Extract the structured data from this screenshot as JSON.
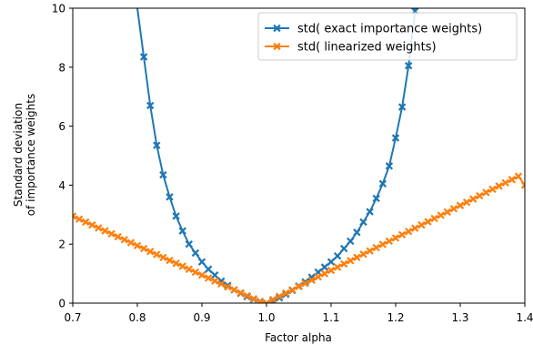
{
  "chart_data": {
    "type": "line",
    "title": "",
    "xlabel": "Factor alpha",
    "ylabel_lines": [
      "Standard deviation",
      "of importance weights"
    ],
    "xlim": [
      0.7,
      1.4
    ],
    "ylim": [
      0,
      10
    ],
    "xticks": [
      0.7,
      0.8,
      0.9,
      1.0,
      1.1,
      1.2,
      1.3,
      1.4
    ],
    "xtick_labels": [
      "0.7",
      "0.8",
      "0.9",
      "1.0",
      "1.1",
      "1.2",
      "1.3",
      "1.4"
    ],
    "yticks": [
      0,
      2,
      4,
      6,
      8,
      10
    ],
    "ytick_labels": [
      "0",
      "2",
      "4",
      "6",
      "8",
      "10"
    ],
    "grid": false,
    "legend_position": "top-right",
    "series": [
      {
        "name": "std( exact importance weights)",
        "color": "#1f77b4",
        "marker": "X",
        "x": [
          0.81,
          0.82,
          0.83,
          0.84,
          0.85,
          0.86,
          0.87,
          0.88,
          0.89,
          0.9,
          0.91,
          0.92,
          0.93,
          0.94,
          0.95,
          0.96,
          0.97,
          0.98,
          0.99,
          1.0,
          1.01,
          1.02,
          1.03,
          1.04,
          1.05,
          1.06,
          1.07,
          1.08,
          1.09,
          1.1,
          1.11,
          1.12,
          1.13,
          1.14,
          1.15,
          1.16,
          1.17,
          1.18,
          1.19,
          1.2,
          1.21,
          1.22,
          1.23
        ],
        "y": [
          8.35,
          6.7,
          5.35,
          4.35,
          3.6,
          2.95,
          2.45,
          2.0,
          1.7,
          1.4,
          1.15,
          0.95,
          0.75,
          0.6,
          0.45,
          0.33,
          0.22,
          0.13,
          0.06,
          0.0,
          0.08,
          0.18,
          0.3,
          0.43,
          0.58,
          0.72,
          0.88,
          1.05,
          1.22,
          1.4,
          1.6,
          1.85,
          2.1,
          2.4,
          2.75,
          3.1,
          3.55,
          4.05,
          4.65,
          5.6,
          6.65,
          8.05,
          9.9
        ]
      },
      {
        "name": "std( linearized weights)",
        "color": "#ff7f0e",
        "marker": "X",
        "x": [
          0.7,
          0.71,
          0.72,
          0.73,
          0.74,
          0.75,
          0.76,
          0.77,
          0.78,
          0.79,
          0.8,
          0.81,
          0.82,
          0.83,
          0.84,
          0.85,
          0.86,
          0.87,
          0.88,
          0.89,
          0.9,
          0.91,
          0.92,
          0.93,
          0.94,
          0.95,
          0.96,
          0.97,
          0.98,
          0.99,
          1.0,
          1.01,
          1.02,
          1.03,
          1.04,
          1.05,
          1.06,
          1.07,
          1.08,
          1.09,
          1.1,
          1.11,
          1.12,
          1.13,
          1.14,
          1.15,
          1.16,
          1.17,
          1.18,
          1.19,
          1.2,
          1.21,
          1.22,
          1.23,
          1.24,
          1.25,
          1.26,
          1.27,
          1.28,
          1.29,
          1.3,
          1.31,
          1.32,
          1.33,
          1.34,
          1.35,
          1.36,
          1.37,
          1.38,
          1.39,
          1.4
        ],
        "y": [
          2.95,
          2.85,
          2.75,
          2.65,
          2.55,
          2.45,
          2.35,
          2.25,
          2.15,
          2.05,
          1.95,
          1.85,
          1.75,
          1.65,
          1.55,
          1.45,
          1.35,
          1.25,
          1.15,
          1.05,
          0.95,
          0.85,
          0.75,
          0.65,
          0.55,
          0.45,
          0.35,
          0.25,
          0.15,
          0.05,
          0.0,
          0.12,
          0.23,
          0.34,
          0.45,
          0.56,
          0.67,
          0.78,
          0.89,
          1.0,
          1.11,
          1.22,
          1.33,
          1.44,
          1.55,
          1.66,
          1.77,
          1.88,
          1.99,
          2.1,
          2.21,
          2.32,
          2.43,
          2.54,
          2.65,
          2.76,
          2.87,
          2.98,
          3.09,
          3.2,
          3.31,
          3.42,
          3.53,
          3.64,
          3.75,
          3.86,
          3.97,
          4.08,
          4.19,
          4.3,
          4.0
        ]
      }
    ]
  }
}
